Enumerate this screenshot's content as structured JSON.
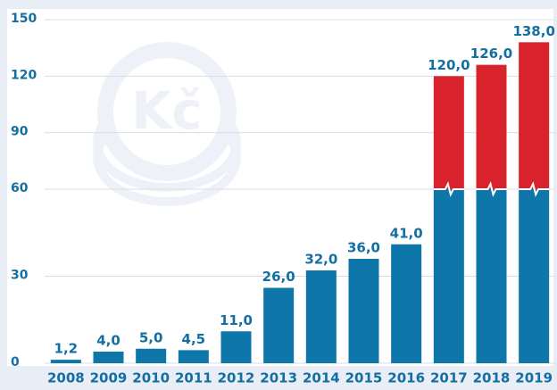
{
  "chart_data": {
    "type": "bar",
    "watermark": "Kč",
    "categories": [
      "2008",
      "2009",
      "2010",
      "2011",
      "2012",
      "2013",
      "2014",
      "2015",
      "2016",
      "2017",
      "2018",
      "2019"
    ],
    "values": [
      1.2,
      4,
      5,
      4.5,
      11,
      26,
      32,
      36,
      41,
      120,
      126,
      138
    ],
    "value_labels": [
      "1,2",
      "4,0",
      "5,0",
      "4,5",
      "11,0",
      "26,0",
      "32,0",
      "36,0",
      "41,0",
      "120,0",
      "126,0",
      "138,0"
    ],
    "color": "#0f76a9",
    "break_color": "#d8232c",
    "axis_break": 60,
    "ylim": [
      0,
      150
    ],
    "yticks": [
      0,
      30,
      60,
      90,
      120,
      150
    ],
    "grid": true
  }
}
